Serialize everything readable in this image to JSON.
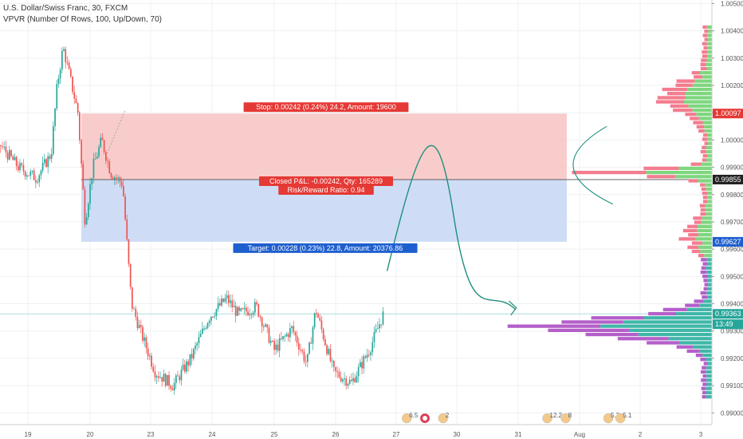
{
  "header": {
    "title": "U.S. Dollar/Swiss Franc, 30, FXCM",
    "indicator": "VPVR (Number Of Rows, 100, Up/Down, 70)"
  },
  "chart_data": {
    "type": "candlestick",
    "ylim": [
      0.98957,
      1.00513
    ],
    "price_ticks": [
      "1.00500",
      "1.00400",
      "1.00300",
      "1.00200",
      "1.00100",
      "1.00000",
      "0.99900",
      "0.99800",
      "0.99700",
      "0.99600",
      "0.99500",
      "0.99400",
      "0.99300",
      "0.99200",
      "0.99100",
      "0.99000"
    ],
    "date_ticks": [
      "19",
      "20",
      "23",
      "24",
      "25",
      "26",
      "27",
      "30",
      "31",
      "Aug",
      "2",
      "3"
    ],
    "price_markers": [
      {
        "value": "1.00097",
        "color": "#e53935",
        "price": 1.00097
      },
      {
        "value": "0.99855",
        "color": "#222222",
        "price": 0.99855
      },
      {
        "value": "0.99627",
        "color": "#1e5fcf",
        "price": 0.99627
      },
      {
        "value": "0.99363",
        "color": "#26a69a",
        "price": 0.99363
      },
      {
        "value": "13:49",
        "color": "#26a69a",
        "price": 0.99325
      }
    ],
    "position": {
      "entry": 0.99855,
      "stop": 1.00097,
      "target": 0.99627,
      "stop_label": "Stop: 0.00242 (0.24%) 24.2, Amount: 19600",
      "closed_label_1": "Closed P&L: -0.00242, Qty: 165289",
      "closed_label_2": "Risk/Reward Ratio: 0.94",
      "target_label": "Target: 0.00228 (0.23%) 22.8, Amount: 20376.86"
    },
    "events": [
      {
        "label": "6.5",
        "date_index": 6.2
      },
      {
        "label": "",
        "date_index": 6.5
      },
      {
        "label": "2",
        "date_index": 6.8
      },
      {
        "label": "12.2",
        "date_index": 8.5
      },
      {
        "label": "8",
        "date_index": 8.8
      },
      {
        "label": "5.2",
        "date_index": 9.5
      },
      {
        "label": "5.1",
        "date_index": 9.7
      }
    ],
    "colors": {
      "up": "#26a69a",
      "down": "#ef5350",
      "vp_up": "#7ed67e",
      "vp_down": "#f47c8f",
      "vp_up_low": "#3fb7a8",
      "vp_down_low": "#b45fc9",
      "stop_zone": "#f8c3c3",
      "target_zone": "#c9d9f4"
    }
  }
}
